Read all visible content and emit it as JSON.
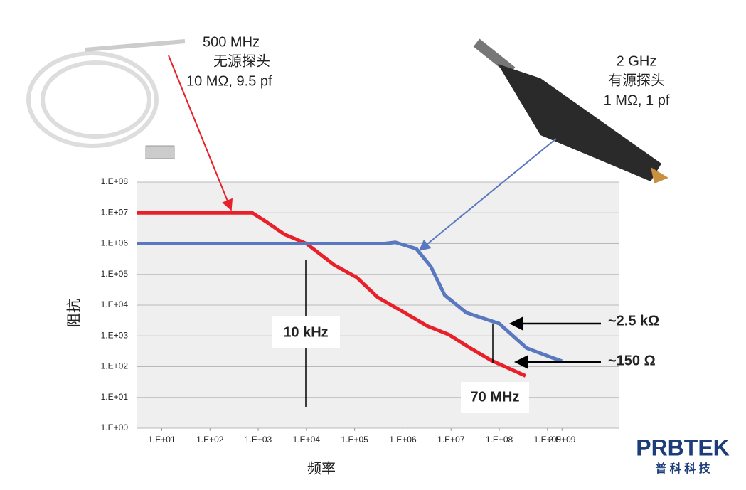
{
  "chart_data": {
    "type": "line",
    "x_label": "频率",
    "y_label": "阻抗",
    "log_x": true,
    "log_y": true,
    "grid": true,
    "xlim": [
      3,
      30000000000
    ],
    "ylim": [
      1,
      100000000
    ],
    "xticks": [
      {
        "value": 10,
        "label": "1.E+01"
      },
      {
        "value": 100,
        "label": "1.E+02"
      },
      {
        "value": 1000,
        "label": "1.E+03"
      },
      {
        "value": 10000,
        "label": "1.E+04"
      },
      {
        "value": 100000,
        "label": "1.E+05"
      },
      {
        "value": 1000000,
        "label": "1.E+06"
      },
      {
        "value": 10000000,
        "label": "1.E+07"
      },
      {
        "value": 100000000,
        "label": "1.E+08"
      },
      {
        "value": 1000000000,
        "label": "1.E+09"
      },
      {
        "value": 2000000000,
        "label": "2.E+09"
      }
    ],
    "yticks": [
      {
        "value": 1,
        "label": "1.E+00"
      },
      {
        "value": 10,
        "label": "1.E+01"
      },
      {
        "value": 100,
        "label": "1.E+02"
      },
      {
        "value": 1000,
        "label": "1.E+03"
      },
      {
        "value": 10000,
        "label": "1.E+04"
      },
      {
        "value": 100000,
        "label": "1.E+05"
      },
      {
        "value": 1000000,
        "label": "1.E+06"
      },
      {
        "value": 10000000,
        "label": "1.E+07"
      },
      {
        "value": 100000000,
        "label": "1.E+08"
      }
    ],
    "series": [
      {
        "color": "#e8202a",
        "x": [
          3,
          750,
          1500,
          3500,
          10000,
          38000,
          110000,
          300000,
          1100000,
          3200000,
          9000000,
          25000000,
          68000000,
          350000000
        ],
        "values": [
          10000000,
          10000000,
          5000000,
          2000000,
          1000000,
          200000,
          80000,
          18000,
          5600,
          2100,
          1100,
          400,
          160,
          50
        ]
      },
      {
        "color": "#5a78c0",
        "x": [
          3,
          420000,
          700000,
          1900000,
          3800000,
          7400000,
          21000000,
          100000000,
          370000000,
          1200000000,
          2000000000
        ],
        "values": [
          1000000,
          1000000,
          1100000,
          680000,
          180000,
          21000,
          5600,
          2500,
          400,
          200,
          150
        ]
      }
    ],
    "annotations": {
      "passive_freq": "500 MHz",
      "passive_name": "无源探头",
      "passive_spec": "10 MΩ, 9.5 pf",
      "active_freq": "2 GHz",
      "active_name": "有源探头",
      "active_spec": "1 MΩ, 1 pf",
      "crossover": "10 kHz",
      "active_at": "~2.5 kΩ",
      "passive_at": "~150 Ω",
      "cutoff": "70 MHz"
    },
    "logo": {
      "name": "PRBTEK",
      "subtitle": "普 科 科 技"
    }
  }
}
